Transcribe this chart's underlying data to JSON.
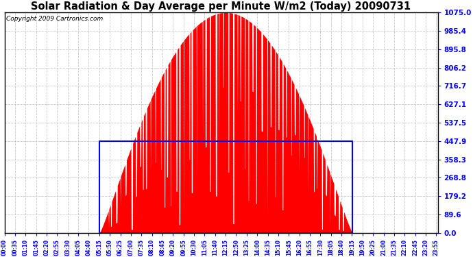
{
  "title": "Solar Radiation & Day Average per Minute W/m2 (Today) 20090731",
  "copyright": "Copyright 2009 Cartronics.com",
  "ytick_values": [
    0.0,
    89.6,
    179.2,
    268.8,
    358.3,
    447.9,
    537.5,
    627.1,
    716.7,
    806.2,
    895.8,
    985.4,
    1075.0
  ],
  "ymax": 1075.0,
  "ymin": 0.0,
  "day_average": 447.9,
  "sunrise_hour": 5.267,
  "sunset_hour": 19.267,
  "background_color": "#ffffff",
  "fill_color": "#ff0000",
  "line_color": "#ff0000",
  "avg_rect_color": "#0000ff",
  "grid_color": "#c8c8c8",
  "title_fontsize": 10.5,
  "copyright_fontsize": 6.5,
  "figwidth": 6.9,
  "figheight": 3.75,
  "dpi": 100
}
